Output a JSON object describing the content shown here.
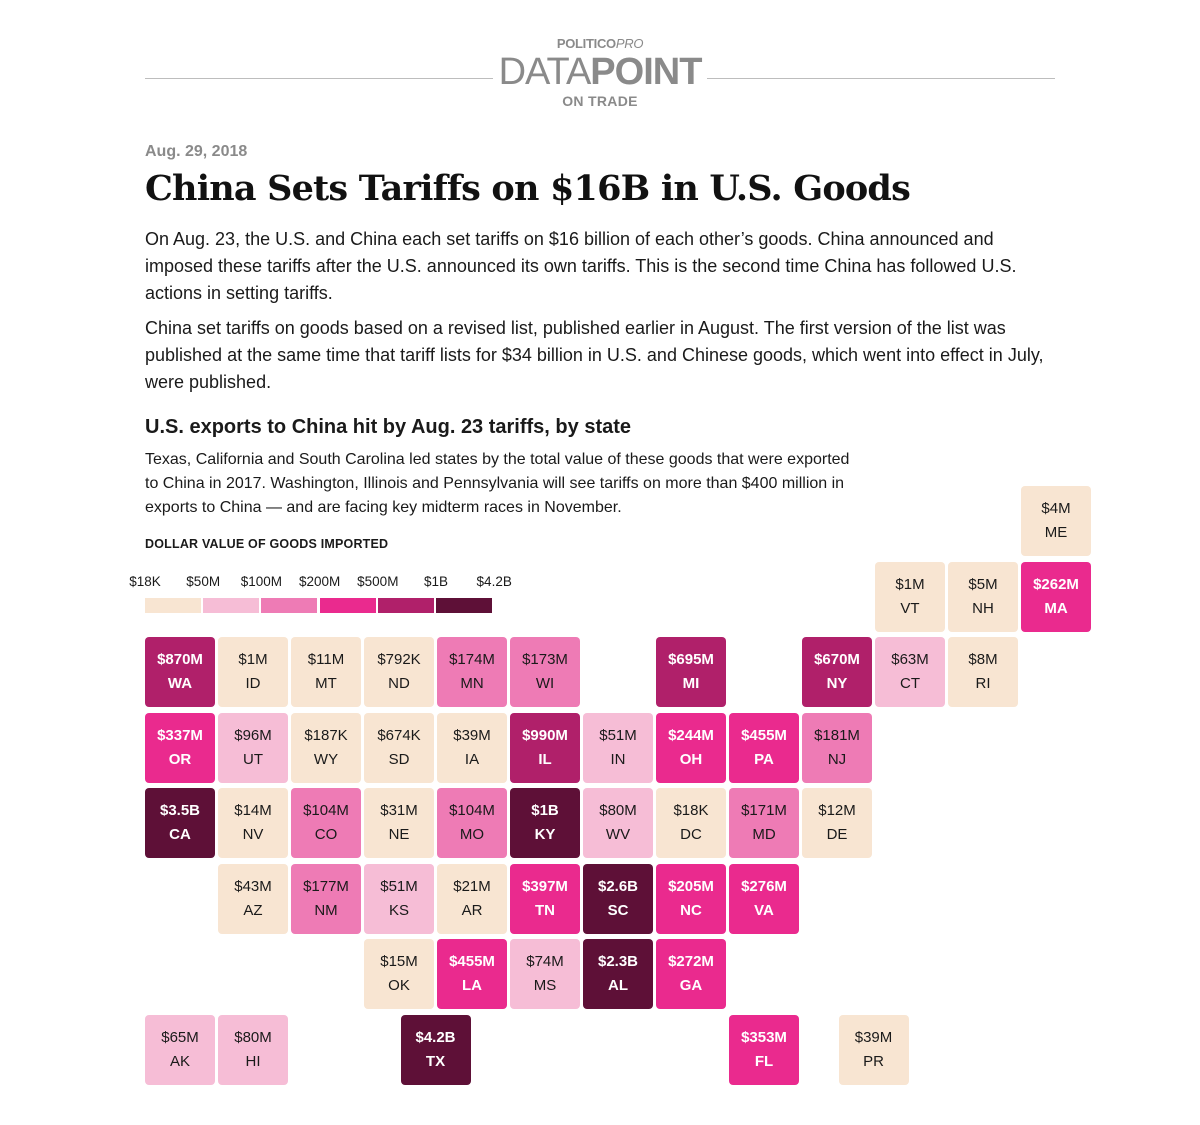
{
  "brand": {
    "line1_main": "POLITICO",
    "line1_pro": "PRO",
    "line2_light": "DATA",
    "line2_bold": "POINT",
    "line3": "ON TRADE"
  },
  "date": "Aug. 29, 2018",
  "title": "China Sets Tariffs on $16B in U.S. Goods",
  "paragraphs": [
    "On Aug. 23, the U.S. and China each set tariffs on $16 billion of each other’s goods. China announced and imposed these tariffs after the U.S. announced its own tariffs. This is the second time China has followed U.S. actions in setting tariffs.",
    "China set tariffs on goods based on a revised list, published earlier in August. The first version of the list was published at the same time that tariff lists for $34 billion in U.S. and Chinese goods, which went into effect in July, were published."
  ],
  "chart": {
    "title": "U.S. exports to China hit by Aug. 23 tariffs, by state",
    "description": "Texas, California and South Carolina led states by the total value of these goods that were exported to China in 2017. Washington, Illinois and Pennsylvania will see tariffs on more than $400 million in exports to China — and are facing key midterm races in November.",
    "legend_title": "DOLLAR VALUE OF GOODS IMPORTED",
    "legend_labels": [
      "$18K",
      "$50M",
      "$100M",
      "$200M",
      "$500M",
      "$1B",
      "$4.2B"
    ],
    "legend_colors": [
      "#f8e5d2",
      "#f6bdd6",
      "#ee7bb5",
      "#ea2a8e",
      "#b0206a",
      "#5e1037"
    ]
  },
  "chart_data": {
    "type": "tile-map",
    "value_unit": "USD",
    "bins": [
      {
        "min": 18000,
        "max": 50000000,
        "color": "#f8e5d2"
      },
      {
        "min": 50000000,
        "max": 100000000,
        "color": "#f6bdd6"
      },
      {
        "min": 100000000,
        "max": 200000000,
        "color": "#ee7bb5"
      },
      {
        "min": 200000000,
        "max": 500000000,
        "color": "#ea2a8e"
      },
      {
        "min": 500000000,
        "max": 1000000000,
        "color": "#b0206a"
      },
      {
        "min": 1000000000,
        "max": 4200000000,
        "color": "#5e1037"
      }
    ],
    "tiles": [
      {
        "state": "ME",
        "label": "$4M",
        "value": 4000000,
        "row": 0,
        "col": 12
      },
      {
        "state": "VT",
        "label": "$1M",
        "value": 1000000,
        "row": 1,
        "col": 10
      },
      {
        "state": "NH",
        "label": "$5M",
        "value": 5000000,
        "row": 1,
        "col": 11
      },
      {
        "state": "MA",
        "label": "$262M",
        "value": 262000000,
        "row": 1,
        "col": 12
      },
      {
        "state": "WA",
        "label": "$870M",
        "value": 870000000,
        "row": 2,
        "col": 0
      },
      {
        "state": "ID",
        "label": "$1M",
        "value": 1000000,
        "row": 2,
        "col": 1
      },
      {
        "state": "MT",
        "label": "$11M",
        "value": 11000000,
        "row": 2,
        "col": 2
      },
      {
        "state": "ND",
        "label": "$792K",
        "value": 792000,
        "row": 2,
        "col": 3
      },
      {
        "state": "MN",
        "label": "$174M",
        "value": 174000000,
        "row": 2,
        "col": 4
      },
      {
        "state": "WI",
        "label": "$173M",
        "value": 173000000,
        "row": 2,
        "col": 5
      },
      {
        "state": "MI",
        "label": "$695M",
        "value": 695000000,
        "row": 2,
        "col": 7
      },
      {
        "state": "NY",
        "label": "$670M",
        "value": 670000000,
        "row": 2,
        "col": 9
      },
      {
        "state": "CT",
        "label": "$63M",
        "value": 63000000,
        "row": 2,
        "col": 10
      },
      {
        "state": "RI",
        "label": "$8M",
        "value": 8000000,
        "row": 2,
        "col": 11
      },
      {
        "state": "OR",
        "label": "$337M",
        "value": 337000000,
        "row": 3,
        "col": 0
      },
      {
        "state": "UT",
        "label": "$96M",
        "value": 96000000,
        "row": 3,
        "col": 1
      },
      {
        "state": "WY",
        "label": "$187K",
        "value": 187000,
        "row": 3,
        "col": 2
      },
      {
        "state": "SD",
        "label": "$674K",
        "value": 674000,
        "row": 3,
        "col": 3
      },
      {
        "state": "IA",
        "label": "$39M",
        "value": 39000000,
        "row": 3,
        "col": 4
      },
      {
        "state": "IL",
        "label": "$990M",
        "value": 990000000,
        "row": 3,
        "col": 5
      },
      {
        "state": "IN",
        "label": "$51M",
        "value": 51000000,
        "row": 3,
        "col": 6
      },
      {
        "state": "OH",
        "label": "$244M",
        "value": 244000000,
        "row": 3,
        "col": 7
      },
      {
        "state": "PA",
        "label": "$455M",
        "value": 455000000,
        "row": 3,
        "col": 8
      },
      {
        "state": "NJ",
        "label": "$181M",
        "value": 181000000,
        "row": 3,
        "col": 9
      },
      {
        "state": "CA",
        "label": "$3.5B",
        "value": 3500000000,
        "row": 4,
        "col": 0
      },
      {
        "state": "NV",
        "label": "$14M",
        "value": 14000000,
        "row": 4,
        "col": 1
      },
      {
        "state": "CO",
        "label": "$104M",
        "value": 104000000,
        "row": 4,
        "col": 2
      },
      {
        "state": "NE",
        "label": "$31M",
        "value": 31000000,
        "row": 4,
        "col": 3
      },
      {
        "state": "MO",
        "label": "$104M",
        "value": 104000000,
        "row": 4,
        "col": 4
      },
      {
        "state": "KY",
        "label": "$1B",
        "value": 1000000000,
        "row": 4,
        "col": 5
      },
      {
        "state": "WV",
        "label": "$80M",
        "value": 80000000,
        "row": 4,
        "col": 6
      },
      {
        "state": "DC",
        "label": "$18K",
        "value": 18000,
        "row": 4,
        "col": 7
      },
      {
        "state": "MD",
        "label": "$171M",
        "value": 171000000,
        "row": 4,
        "col": 8
      },
      {
        "state": "DE",
        "label": "$12M",
        "value": 12000000,
        "row": 4,
        "col": 9
      },
      {
        "state": "AZ",
        "label": "$43M",
        "value": 43000000,
        "row": 5,
        "col": 1
      },
      {
        "state": "NM",
        "label": "$177M",
        "value": 177000000,
        "row": 5,
        "col": 2
      },
      {
        "state": "KS",
        "label": "$51M",
        "value": 51000000,
        "row": 5,
        "col": 3
      },
      {
        "state": "AR",
        "label": "$21M",
        "value": 21000000,
        "row": 5,
        "col": 4
      },
      {
        "state": "TN",
        "label": "$397M",
        "value": 397000000,
        "row": 5,
        "col": 5
      },
      {
        "state": "SC",
        "label": "$2.6B",
        "value": 2600000000,
        "row": 5,
        "col": 6
      },
      {
        "state": "NC",
        "label": "$205M",
        "value": 205000000,
        "row": 5,
        "col": 7
      },
      {
        "state": "VA",
        "label": "$276M",
        "value": 276000000,
        "row": 5,
        "col": 8
      },
      {
        "state": "OK",
        "label": "$15M",
        "value": 15000000,
        "row": 6,
        "col": 3
      },
      {
        "state": "LA",
        "label": "$455M",
        "value": 455000000,
        "row": 6,
        "col": 4
      },
      {
        "state": "MS",
        "label": "$74M",
        "value": 74000000,
        "row": 6,
        "col": 5
      },
      {
        "state": "AL",
        "label": "$2.3B",
        "value": 2300000000,
        "row": 6,
        "col": 6
      },
      {
        "state": "GA",
        "label": "$272M",
        "value": 272000000,
        "row": 6,
        "col": 7
      },
      {
        "state": "AK",
        "label": "$65M",
        "value": 65000000,
        "row": 7,
        "col": 0
      },
      {
        "state": "HI",
        "label": "$80M",
        "value": 80000000,
        "row": 7,
        "col": 1
      },
      {
        "state": "TX",
        "label": "$4.2B",
        "value": 4200000000,
        "row": 7,
        "col": 3.5
      },
      {
        "state": "FL",
        "label": "$353M",
        "value": 353000000,
        "row": 7,
        "col": 8
      },
      {
        "state": "PR",
        "label": "$39M",
        "value": 39000000,
        "row": 7,
        "col": 9.5
      }
    ]
  }
}
